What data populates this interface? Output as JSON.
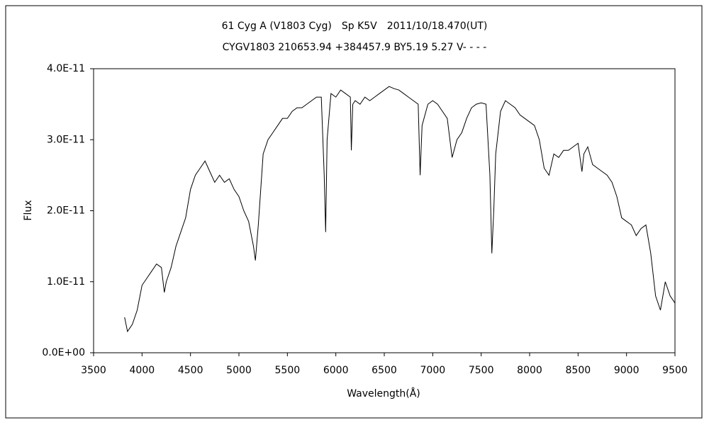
{
  "chart_data": {
    "type": "line",
    "title": "61 Cyg A (V1803 Cyg)　Sp K5V　2011/10/18.470(UT)",
    "subtitle": "CYGV1803 210653.94 +384457.9 BY5.19 5.27 V- - - -",
    "x_label": "Wavelength(Å)",
    "y_label": "Flux",
    "color": "#000000",
    "xlim": [
      3500,
      9500
    ],
    "xticks": [
      3500,
      4000,
      4500,
      5000,
      5500,
      6000,
      6500,
      7000,
      7500,
      8000,
      8500,
      9000,
      9500
    ],
    "ylim": [
      0,
      4e-11
    ],
    "yticks": [
      {
        "value": 0,
        "label": "0.0E+00"
      },
      {
        "value": 1e-11,
        "label": "1.0E-11"
      },
      {
        "value": 2e-11,
        "label": "2.0E-11"
      },
      {
        "value": 3e-11,
        "label": "3.0E-11"
      },
      {
        "value": 4e-11,
        "label": "4.0E-11"
      }
    ],
    "grid": false,
    "x": [
      3820,
      3850,
      3900,
      3950,
      4000,
      4050,
      4100,
      4150,
      4200,
      4230,
      4250,
      4300,
      4350,
      4400,
      4450,
      4500,
      4550,
      4600,
      4650,
      4700,
      4750,
      4800,
      4850,
      4900,
      4950,
      5000,
      5050,
      5100,
      5150,
      5170,
      5200,
      5250,
      5300,
      5350,
      5400,
      5450,
      5500,
      5550,
      5600,
      5650,
      5700,
      5750,
      5800,
      5850,
      5880,
      5895,
      5910,
      5950,
      6000,
      6050,
      6100,
      6150,
      6160,
      6175,
      6200,
      6250,
      6300,
      6350,
      6400,
      6450,
      6500,
      6550,
      6600,
      6650,
      6700,
      6750,
      6800,
      6850,
      6870,
      6890,
      6950,
      7000,
      7050,
      7100,
      7150,
      7200,
      7250,
      7300,
      7350,
      7400,
      7450,
      7500,
      7550,
      7590,
      7610,
      7630,
      7650,
      7700,
      7750,
      7800,
      7850,
      7900,
      7950,
      8000,
      8050,
      8100,
      8150,
      8200,
      8250,
      8300,
      8350,
      8400,
      8450,
      8500,
      8540,
      8560,
      8600,
      8650,
      8700,
      8750,
      8800,
      8850,
      8900,
      8950,
      9000,
      9050,
      9100,
      9150,
      9200,
      9250,
      9300,
      9350,
      9400,
      9450,
      9500
    ],
    "values": [
      5e-12,
      3e-12,
      4e-12,
      6e-12,
      9.5e-12,
      1.05e-11,
      1.15e-11,
      1.25e-11,
      1.2e-11,
      8.5e-12,
      1e-11,
      1.2e-11,
      1.5e-11,
      1.7e-11,
      1.9e-11,
      2.3e-11,
      2.5e-11,
      2.6e-11,
      2.7e-11,
      2.55e-11,
      2.4e-11,
      2.5e-11,
      2.4e-11,
      2.45e-11,
      2.3e-11,
      2.2e-11,
      2e-11,
      1.85e-11,
      1.5e-11,
      1.3e-11,
      1.8e-11,
      2.8e-11,
      3e-11,
      3.1e-11,
      3.2e-11,
      3.3e-11,
      3.3e-11,
      3.4e-11,
      3.45e-11,
      3.45e-11,
      3.5e-11,
      3.55e-11,
      3.6e-11,
      3.6e-11,
      2.5e-11,
      1.7e-11,
      3e-11,
      3.65e-11,
      3.6e-11,
      3.7e-11,
      3.65e-11,
      3.6e-11,
      2.85e-11,
      3.5e-11,
      3.55e-11,
      3.5e-11,
      3.6e-11,
      3.55e-11,
      3.6e-11,
      3.65e-11,
      3.7e-11,
      3.75e-11,
      3.72e-11,
      3.7e-11,
      3.65e-11,
      3.6e-11,
      3.55e-11,
      3.5e-11,
      2.5e-11,
      3.2e-11,
      3.5e-11,
      3.55e-11,
      3.5e-11,
      3.4e-11,
      3.3e-11,
      2.75e-11,
      3e-11,
      3.1e-11,
      3.3e-11,
      3.45e-11,
      3.5e-11,
      3.52e-11,
      3.5e-11,
      2.5e-11,
      1.4e-11,
      2e-11,
      2.8e-11,
      3.4e-11,
      3.55e-11,
      3.5e-11,
      3.45e-11,
      3.35e-11,
      3.3e-11,
      3.25e-11,
      3.2e-11,
      3e-11,
      2.6e-11,
      2.5e-11,
      2.8e-11,
      2.75e-11,
      2.85e-11,
      2.85e-11,
      2.9e-11,
      2.95e-11,
      2.55e-11,
      2.8e-11,
      2.9e-11,
      2.65e-11,
      2.6e-11,
      2.55e-11,
      2.5e-11,
      2.4e-11,
      2.2e-11,
      1.9e-11,
      1.85e-11,
      1.8e-11,
      1.65e-11,
      1.75e-11,
      1.8e-11,
      1.4e-11,
      8e-12,
      6e-12,
      1e-11,
      8e-12,
      7e-12
    ]
  }
}
